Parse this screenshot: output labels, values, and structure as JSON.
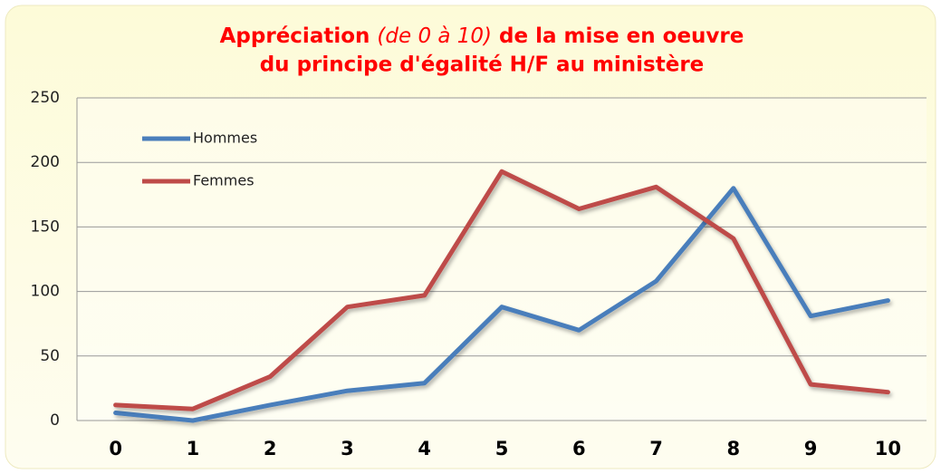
{
  "chart_data": {
    "type": "line",
    "title": {
      "start": "Appréciation",
      "italic": "(de 0 à 10)",
      "end": "de la mise en oeuvre",
      "line2": "du principe d'égalité H/F au ministère"
    },
    "categories": [
      "0",
      "1",
      "2",
      "3",
      "4",
      "5",
      "6",
      "7",
      "8",
      "9",
      "10"
    ],
    "series": [
      {
        "name": "Hommes",
        "color": "#4a7ebb",
        "values": [
          6,
          0,
          12,
          23,
          29,
          88,
          70,
          108,
          180,
          81,
          93
        ]
      },
      {
        "name": "Femmes",
        "color": "#be4b48",
        "values": [
          12,
          9,
          34,
          88,
          97,
          193,
          164,
          181,
          141,
          28,
          22
        ]
      }
    ],
    "ylim": [
      0,
      250
    ],
    "yticks": [
      0,
      50,
      100,
      150,
      200,
      250
    ],
    "grid": true,
    "legend": "top-left"
  }
}
